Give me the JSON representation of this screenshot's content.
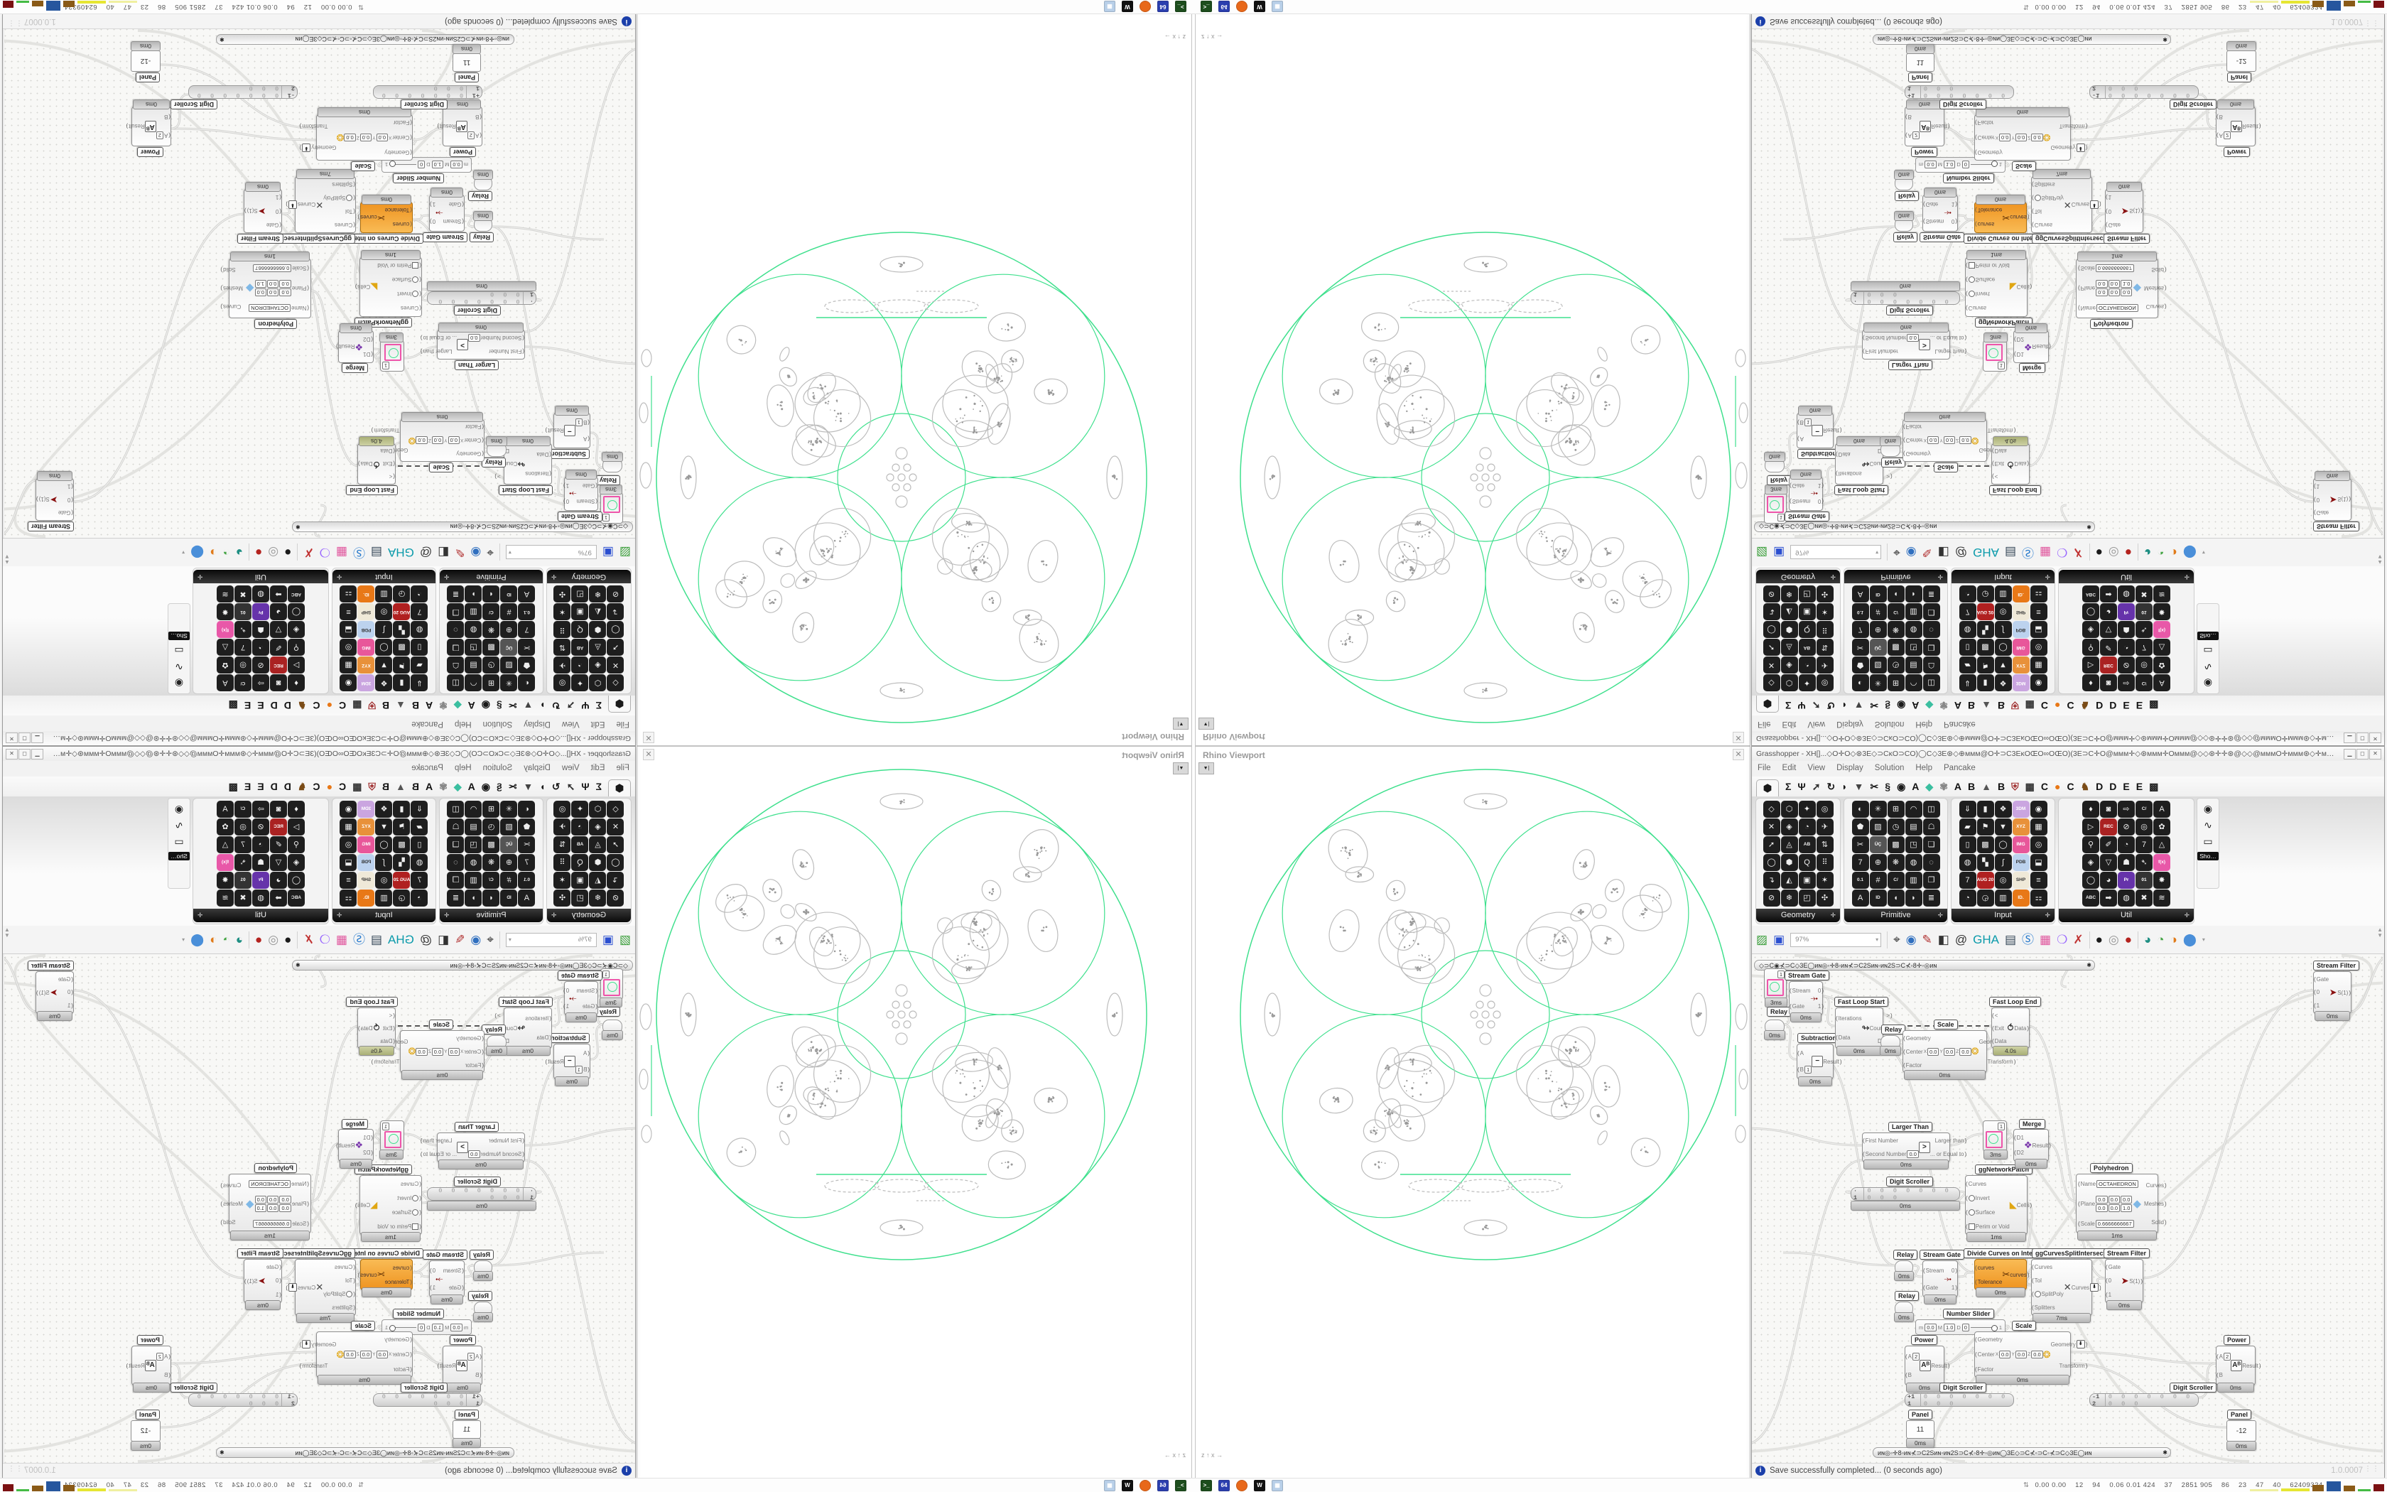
{
  "desktop": {
    "taskbar": {
      "stats_icon": "⇅",
      "stats": "0.00 0.00    12    94    0.06 0.01 424    37    2851 905    86    23    47    40    62409324",
      "tray": [
        {
          "name": "terminal-icon",
          "label": ">_",
          "bg": "#1d4d1d"
        },
        {
          "name": "floppy-64-icon",
          "label": "64",
          "bg": "#2b3fae"
        },
        {
          "name": "firefox-icon",
          "label": "",
          "bg": "#e8681a"
        },
        {
          "name": "gimp-icon",
          "label": "W",
          "bg": "#111111"
        },
        {
          "name": "pda-icon",
          "label": "▦",
          "bg": "#b8cfe8"
        }
      ],
      "blocks": [
        {
          "name": "meter-paleyellow",
          "c": "#f0f0a0",
          "w": 40,
          "h": 3
        },
        {
          "name": "meter-yellow",
          "c": "#e6e632",
          "w": 40,
          "h": 4
        },
        {
          "name": "meter-brown-1",
          "c": "#8a5a17",
          "w": 16,
          "h": 9
        },
        {
          "name": "meter-blue",
          "c": "#26569e",
          "w": 20,
          "h": 14
        },
        {
          "name": "meter-brown-2",
          "c": "#8a5a17",
          "w": 16,
          "h": 8
        },
        {
          "name": "meter-green",
          "c": "#44bb44",
          "w": 18,
          "h": 3
        },
        {
          "name": "meter-darkred",
          "c": "#7b1113",
          "w": 15,
          "h": 10
        }
      ]
    }
  },
  "viewport": {
    "title": "Rhino Viewport",
    "close": "✕",
    "collapse": "▼|",
    "axis": "z ↑  x →"
  },
  "grasshopper": {
    "title": "Grasshopper - XH[]...◇O✛O◇⊛3E◇⊃CĸO⊃CO)◯C◇3E⊛◇⊕ммм@O✛⊃C3EĸOŒO∞OŒO)(3E⊃C✛O@ммм✛◇⊛ммм✛Oммм@◇◇⊛✛✛⊛@◇◇@мммO✛ммм⊛◇✛ммм@O✛⊃C3EĸOŒO∞OŒ",
    "buttons": {
      "min": "▁",
      "max": "◻",
      "close": "✕"
    },
    "menu": [
      "File",
      "Edit",
      "View",
      "Display",
      "Solution",
      "Help",
      "Pancake"
    ],
    "tabs": [
      {
        "name": "tab-params",
        "g": "⬢",
        "c": "#1a1a1a",
        "active": true
      },
      {
        "name": "tab-maths",
        "g": "Σ",
        "c": "#1a1a1a"
      },
      {
        "name": "tab-sets",
        "g": "Ψ",
        "c": "#1a1a1a"
      },
      {
        "name": "tab-vector",
        "g": "➚",
        "c": "#333333"
      },
      {
        "name": "tab-curve",
        "g": "↻",
        "c": "#1a1a1a"
      },
      {
        "name": "tab-surface",
        "g": "◗",
        "c": "#1a1a1a"
      },
      {
        "name": "tab-mesh",
        "g": "▼",
        "c": "#444444"
      },
      {
        "name": "tab-intersect",
        "g": "✂",
        "c": "#1a1a1a"
      },
      {
        "name": "tab-transform",
        "g": "§",
        "c": "#1a1a1a"
      },
      {
        "name": "tab-display",
        "g": "◉",
        "c": "#1a1a1a"
      },
      {
        "name": "tab-A1",
        "g": "A",
        "c": "#111111"
      },
      {
        "name": "tab-gem",
        "g": "◆",
        "c": "#3bbfa0"
      },
      {
        "name": "tab-flower",
        "g": "✾",
        "c": "#888888"
      },
      {
        "name": "tab-A2",
        "g": "A",
        "c": "#111111"
      },
      {
        "name": "tab-B1",
        "g": "B",
        "c": "#111111"
      },
      {
        "name": "tab-mountain",
        "g": "▲",
        "c": "#555555"
      },
      {
        "name": "tab-B2",
        "g": "B",
        "c": "#111111"
      },
      {
        "name": "tab-shield",
        "g": "⛨",
        "c": "#a03030"
      },
      {
        "name": "tab-grid",
        "g": "▦",
        "c": "#333333"
      },
      {
        "name": "tab-C1",
        "g": "C",
        "c": "#111111"
      },
      {
        "name": "tab-orange-dot",
        "g": "●",
        "c": "#e87817"
      },
      {
        "name": "tab-C2",
        "g": "C",
        "c": "#111111"
      },
      {
        "name": "tab-bird",
        "g": "♞",
        "c": "#7a4b16"
      },
      {
        "name": "tab-D1",
        "g": "D",
        "c": "#111111"
      },
      {
        "name": "tab-D2",
        "g": "D",
        "c": "#111111"
      },
      {
        "name": "tab-E1",
        "g": "E",
        "c": "#111111"
      },
      {
        "name": "tab-E2",
        "g": "E",
        "c": "#111111"
      },
      {
        "name": "tab-more",
        "g": "▩",
        "c": "#222222"
      }
    ],
    "palette": {
      "panels": [
        {
          "name": "Geometry",
          "cols": 4,
          "glyphs": [
            "◇",
            "⬡",
            "✦",
            "◎",
            "✕",
            "◈",
            "◔",
            "✈",
            "➚",
            "◬",
            "AB",
            "⇅",
            "◯",
            "⬢",
            "Q",
            "⠿",
            "↴",
            "◭",
            "▣",
            "✶",
            "⊘",
            "❄",
            "◰",
            "✣"
          ]
        },
        {
          "name": "Primitive",
          "cols": 5,
          "glyphs": [
            "◐",
            "✳",
            "⊞",
            "◠",
            "◫",
            "⬟",
            "▨",
            "◷",
            "▤",
            "☖",
            "✂",
            "ÜÇ",
            "▩",
            "◳",
            "❏",
            "7",
            "⊕",
            "❋",
            "◍",
            "◌",
            "0.1",
            "#",
            "C/",
            "▥",
            "❐",
            "A",
            "ID",
            "◖",
            "◗",
            "≣"
          ]
        },
        {
          "name": "Input",
          "cols": 5,
          "glyphs": [
            "⇓",
            "▮",
            "❖",
            "3DM",
            "◉",
            "▰",
            "⚑",
            "▼",
            "XYZ",
            "▦",
            "▯",
            "▩",
            "◯",
            "IMG",
            "◎",
            "◍",
            "▚",
            "∫",
            "PDB",
            "⬓",
            "7",
            "AUG 20",
            "◎",
            "SHP",
            "≡",
            "◔",
            "◶",
            "▥",
            "ID.",
            "⚏"
          ]
        },
        {
          "name": "Util",
          "cols": 5,
          "glyphs": [
            "♦",
            "◙",
            "⇨",
            "C/",
            "A",
            "▷",
            "REC",
            "⊘",
            "◎",
            "✿",
            "⚲",
            "✐",
            "◔",
            "7",
            "△",
            "◈",
            "▽",
            "☗",
            "➴",
            "f(x)",
            "◯",
            "◕",
            "Pr",
            "01",
            "✸",
            "ABC",
            "➡",
            "◍",
            "✖",
            "≋"
          ]
        }
      ],
      "side": {
        "icons": [
          "◉",
          "∿",
          "▭"
        ],
        "tooltip": "Sho…"
      }
    },
    "toolbar": {
      "zoom": "97%",
      "icons": [
        {
          "name": "open-file-icon",
          "g": "▨",
          "c": "#3a9e3a"
        },
        {
          "name": "save-file-icon",
          "g": "▣",
          "c": "#2b4fd0"
        },
        {
          "name": "zoom-extents-icon",
          "g": "⌖",
          "c": "#333333"
        },
        {
          "name": "preview-eye-icon",
          "g": "◉",
          "c": "#2f6fbf"
        },
        {
          "name": "wire-pen-icon",
          "g": "✎",
          "c": "#b03030"
        },
        {
          "name": "lamp-icon",
          "g": "◧",
          "c": "#333333"
        },
        {
          "name": "remote-at-icon",
          "g": "@",
          "c": "#333333"
        },
        {
          "name": "gha-icon",
          "g": "GHA",
          "c": "#0a9aaa"
        },
        {
          "name": "document-icon",
          "g": "▤",
          "c": "#334455"
        },
        {
          "name": "find-s-icon",
          "g": "Ⓢ",
          "c": "#2277cc"
        },
        {
          "name": "cluster-box-icon",
          "g": "▦",
          "c": "#e0559d"
        },
        {
          "name": "galapagos-icon",
          "g": "❍",
          "c": "#9966ff"
        },
        {
          "name": "jitter-icon",
          "g": "✗",
          "c": "#c03333"
        },
        {
          "name": "sphere-dark-icon",
          "g": "●",
          "c": "#1b1b1b"
        },
        {
          "name": "cylinder-white-icon",
          "g": "◎",
          "c": "#999999"
        },
        {
          "name": "cylinder-red-icon",
          "g": "●",
          "c": "#b4231f"
        },
        {
          "name": "sphere-teal-icon",
          "g": "◕",
          "c": "#1f8f83"
        },
        {
          "name": "sphere-green-icon",
          "g": "◔",
          "c": "#46a546"
        },
        {
          "name": "sphere-orange-icon",
          "g": "◑",
          "c": "#e07b1a"
        },
        {
          "name": "sphere-blue-icon",
          "g": "⬤",
          "c": "#4a8fd9"
        }
      ],
      "dropdown": "▾"
    },
    "ribbons": {
      "top": "◇⊃C◉⊀⊃C◇3E◯ᴎɴ◎◦✛8◦ᴎɴ⊀⊃C2Sᴎɴ◦ᴎɴ2S⊃C⊀◦8✛◦◎ᴎɴ",
      "bottom": "ᴎɴ◎◦✛8◦ᴎɴ⊀⊃C2Sᴎɴ◦ᴎɴ2S⊃C⊀◦8✛◦◎ᴎɴ◯3E◇⊃C⊀◦⊃C◦⊀⊃C◇3E◯ᴎɴ",
      "star": "✱"
    },
    "status": {
      "message": "Save successfully completed... (0 seconds ago)",
      "version": "1.0.0007",
      "grip": "⋮⋮"
    },
    "nodes": {
      "mini_a": {
        "value": "1",
        "badge": "3ms"
      },
      "pill_a": {
        "tag": "Relay",
        "badge": "0ms"
      },
      "sgate_a": {
        "tag": "Stream Gate",
        "badge": "0ms",
        "ins": [
          "Stream",
          "Gate"
        ],
        "outs": [
          "0",
          "1"
        ],
        "icon": "⤞",
        "iconc": "#8a1111"
      },
      "sub_a": {
        "tag": "Subtraction",
        "badge": "0ms",
        "ins": [
          "A",
          "B"
        ],
        "vals": {
          "1": "1"
        },
        "outs": [
          "Result"
        ],
        "icon": "−",
        "boxed": true
      },
      "floopstart": {
        "tag": "Fast Loop Start",
        "badge": "0ms",
        "ins": [
          "Iterations",
          "Data"
        ],
        "outs": [
          ">",
          "Counter",
          "Data"
        ],
        "icon": "↬",
        "iconc": "#222"
      },
      "pill_b": {
        "tag": "Relay",
        "badge": "0ms"
      },
      "scale_a": {
        "tag": "Scale",
        "badge": "0ms",
        "ins": [
          "Geometry",
          "Center",
          "Factor"
        ],
        "outs": [
          "Geometry",
          "Transform"
        ],
        "xyz": [
          "0.0",
          "0.0",
          "0.0"
        ],
        "icon": "❂",
        "iconc": "#e0a612",
        "outbtn": "⬇"
      },
      "floopend": {
        "tag": "Fast Loop End",
        "badge": "4.0s",
        "slow": true,
        "ins": [
          "<",
          "Exit",
          "Data"
        ],
        "outs": [
          "Data"
        ],
        "icon": "⥀",
        "iconc": "#222"
      },
      "sfilter_a": {
        "tag": "Stream Filter",
        "badge": "0ms",
        "ins": [
          "Gate",
          "0",
          "1"
        ],
        "outs": [
          "S(1)"
        ],
        "icon": "➤",
        "iconc": "#8a1111"
      },
      "larger": {
        "tag": "Larger Than",
        "badge": "0ms",
        "ins": [
          "First Number",
          "Second Number"
        ],
        "vals": {
          "1": "0.0"
        },
        "outs": [
          "Larger than",
          "... or Equal to"
        ],
        "icon": ">",
        "boxed": true
      },
      "ds1": {
        "tag": "Digit Scroller",
        "badge": "0ms",
        "value": "· 1",
        "digits": "0"
      },
      "mini_b": {
        "tag": "ggNetworkPatch",
        "value": "1",
        "badge": "3ms"
      },
      "merge": {
        "tag": "Merge",
        "badge": "0ms",
        "ins": [
          "D1",
          "D2"
        ],
        "outs": [
          "Result"
        ],
        "icon": "❖",
        "iconc": "#7733aa"
      },
      "cells": {
        "badge": "1ms",
        "ins": [
          "Curves",
          "Invert",
          "Surface",
          "Perim or Void"
        ],
        "outs": [
          "Cells"
        ],
        "icon": "◣",
        "iconc": "#e0a612",
        "circles": [
          1,
          2
        ],
        "square": 3
      },
      "poly": {
        "tag": "Polyhedron",
        "badge": "1ms",
        "name_label": "Name",
        "name": "OCTAHEDRON",
        "plane_label": "Plane",
        "plane1": [
          "0.0",
          "0.0",
          "0.0"
        ],
        "plane2": [
          "0.0",
          "0.0",
          "1.0"
        ],
        "scale_label": "Scale",
        "scale": "0.6666666667",
        "outs": [
          "Curves",
          "Meshes",
          "Solid"
        ],
        "icon": "◆",
        "iconc": "#7fb8e6"
      },
      "pill_c": {
        "tag": "Relay",
        "badge": "0ms"
      },
      "pill_d": {
        "tag": "Relay",
        "badge": "0ms"
      },
      "sgate_b": {
        "tag": "Stream Gate",
        "badge": "0ms",
        "ins": [
          "Stream",
          "Gate"
        ],
        "outs": [
          "0",
          "1"
        ],
        "icon": "⤞",
        "iconc": "#8a1111"
      },
      "orange": {
        "tag": "Divide Curves on Intersects",
        "badge": "0ms",
        "ins": [
          "curves",
          "Tolerance"
        ],
        "outs": [
          "curves"
        ],
        "icon": "✂",
        "iconc": "#5a2a00",
        "selected": true
      },
      "ggsplit": {
        "tag": "ggCurvesSplitIntersect",
        "badge": "7ms",
        "ins": [
          "Curves",
          "Tol",
          "SplitPoly",
          "Splitters"
        ],
        "outs": [
          "Curves"
        ],
        "icon": "✕",
        "iconc": "#444",
        "circles": [
          2
        ],
        "outbtn": "⬇"
      },
      "sfilter_b": {
        "tag": "Stream Filter",
        "badge": "0ms",
        "ins": [
          "Gate",
          "0",
          "1"
        ],
        "outs": [
          "S(1)"
        ],
        "icon": "➤",
        "iconc": "#8a1111"
      },
      "nslider": {
        "tag": "Number Slider",
        "m_label": "m",
        "m": "0.0",
        "M_label": "M",
        "M": "1.0",
        "D_label": "D",
        "D": "0",
        "value": "1"
      },
      "power_a": {
        "tag": "Power",
        "badge": "0ms",
        "ins": [
          "A",
          "B"
        ],
        "vals": {
          "0": "2"
        },
        "outs": [
          "Result"
        ],
        "icon": "Aᴮ",
        "boxed": true
      },
      "scale_b": {
        "tag": "Scale",
        "badge": "0ms",
        "ins": [
          "Geometry",
          "Center",
          "Factor"
        ],
        "outs": [
          "Geometry",
          "Transform"
        ],
        "xyz": [
          "0.0",
          "0.0",
          "0.0"
        ],
        "icon": "❂",
        "iconc": "#e0a612",
        "outbtn": "⬇"
      },
      "power_b": {
        "tag": "Power",
        "badge": "0ms",
        "ins": [
          "A",
          "B"
        ],
        "vals": {
          "0": "2"
        },
        "outs": [
          "Result"
        ],
        "icon": "Aᴮ",
        "boxed": true
      },
      "ds2": {
        "tag": "Digit Scroller",
        "value": "+1 1",
        "digits": "0"
      },
      "ds3": {
        "tag": "Digit Scroller",
        "value": "-1 2",
        "digits": "0"
      },
      "panel_a": {
        "tag": "Panel",
        "badge": "0ms",
        "value": "11"
      },
      "panel_b": {
        "tag": "Panel",
        "badge": "0ms",
        "value": "-12"
      }
    }
  }
}
